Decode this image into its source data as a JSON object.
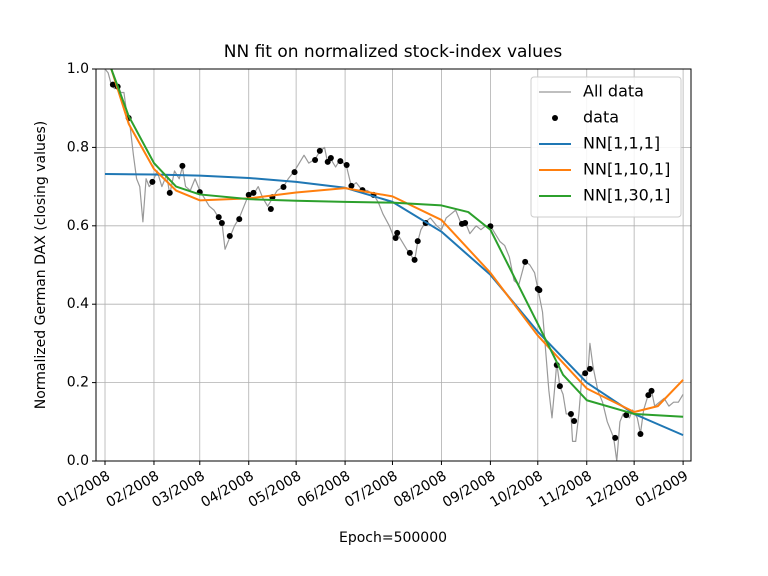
{
  "chart_data": {
    "type": "line",
    "title": "NN fit on normalized stock-index values",
    "x_label": "Epoch=500000",
    "y_label": "Normalized German DAX (closing values)",
    "xlim": [
      -5.7,
      371
    ],
    "ylim": [
      0,
      1
    ],
    "xticks": [
      {
        "value": 0,
        "label": "01/2008"
      },
      {
        "value": 31,
        "label": "02/2008"
      },
      {
        "value": 60,
        "label": "03/2008"
      },
      {
        "value": 91,
        "label": "04/2008"
      },
      {
        "value": 121,
        "label": "05/2008"
      },
      {
        "value": 152,
        "label": "06/2008"
      },
      {
        "value": 182,
        "label": "07/2008"
      },
      {
        "value": 213,
        "label": "08/2008"
      },
      {
        "value": 244,
        "label": "09/2008"
      },
      {
        "value": 274,
        "label": "10/2008"
      },
      {
        "value": 305,
        "label": "11/2008"
      },
      {
        "value": 335,
        "label": "12/2008"
      },
      {
        "value": 366,
        "label": "01/2009"
      }
    ],
    "yticks": [
      {
        "value": 0,
        "label": "0.0"
      },
      0.2,
      0.4,
      0.6,
      0.8,
      {
        "value": 1,
        "label": "1.0"
      }
    ],
    "grid": true,
    "legend": "upper right",
    "series": [
      {
        "name": "All data",
        "kind": "line",
        "color": "#999999",
        "width": 1.2,
        "x": [
          0,
          2,
          4,
          6,
          8,
          10,
          12,
          14,
          16,
          18,
          20,
          22,
          24,
          26,
          28,
          30,
          33,
          36,
          39,
          41,
          44,
          47,
          49,
          51,
          54,
          57,
          60,
          63,
          66,
          69,
          72,
          74,
          76,
          79,
          82,
          85,
          88,
          91,
          94,
          97,
          100,
          103,
          106,
          109,
          113,
          116,
          120,
          123,
          126,
          129,
          133,
          136,
          139,
          141,
          143,
          146,
          149,
          151,
          153,
          156,
          159,
          163,
          166,
          170,
          173,
          176,
          180,
          183,
          185,
          188,
          191,
          193,
          196,
          198,
          200,
          203,
          206,
          210,
          213,
          216,
          219,
          222,
          226,
          228,
          231,
          235,
          238,
          241,
          244,
          247,
          250,
          253,
          256,
          259,
          262,
          266,
          269,
          272,
          274,
          277,
          279,
          281,
          283,
          285,
          286,
          288,
          290,
          292,
          295,
          296,
          298,
          300,
          302,
          304,
          306,
          307,
          309,
          312,
          315,
          318,
          320,
          322,
          324,
          326,
          328,
          330,
          332,
          334,
          337,
          339,
          341,
          344,
          346,
          348,
          351,
          354,
          357,
          360,
          363,
          366
        ],
        "values": [
          1.0,
          0.99,
          0.96,
          0.95,
          0.96,
          0.94,
          0.94,
          0.88,
          0.85,
          0.78,
          0.72,
          0.7,
          0.61,
          0.72,
          0.7,
          0.71,
          0.74,
          0.7,
          0.73,
          0.68,
          0.74,
          0.72,
          0.75,
          0.7,
          0.69,
          0.72,
          0.69,
          0.67,
          0.65,
          0.64,
          0.62,
          0.61,
          0.54,
          0.57,
          0.6,
          0.62,
          0.65,
          0.68,
          0.68,
          0.7,
          0.67,
          0.65,
          0.67,
          0.69,
          0.7,
          0.72,
          0.74,
          0.76,
          0.78,
          0.76,
          0.77,
          0.79,
          0.8,
          0.76,
          0.77,
          0.75,
          0.77,
          0.76,
          0.75,
          0.7,
          0.71,
          0.69,
          0.69,
          0.68,
          0.66,
          0.63,
          0.6,
          0.57,
          0.58,
          0.56,
          0.54,
          0.53,
          0.51,
          0.56,
          0.59,
          0.61,
          0.62,
          0.6,
          0.59,
          0.62,
          0.63,
          0.64,
          0.6,
          0.61,
          0.58,
          0.6,
          0.59,
          0.6,
          0.6,
          0.58,
          0.56,
          0.55,
          0.52,
          0.46,
          0.45,
          0.51,
          0.5,
          0.48,
          0.44,
          0.38,
          0.28,
          0.18,
          0.11,
          0.2,
          0.25,
          0.19,
          0.17,
          0.12,
          0.12,
          0.05,
          0.05,
          0.12,
          0.22,
          0.22,
          0.24,
          0.3,
          0.24,
          0.18,
          0.15,
          0.1,
          0.08,
          0.06,
          0.0,
          0.1,
          0.12,
          0.12,
          0.11,
          0.13,
          0.11,
          0.07,
          0.13,
          0.17,
          0.18,
          0.14,
          0.15,
          0.16,
          0.14,
          0.15,
          0.15,
          0.17
        ]
      },
      {
        "name": "data",
        "kind": "scatter",
        "color": "#000000",
        "x": [
          5,
          8,
          15,
          30,
          41,
          49,
          60,
          72,
          74,
          79,
          85,
          91,
          94,
          105,
          106,
          113,
          120,
          133,
          136,
          141,
          143,
          149,
          153,
          156,
          163,
          170,
          184,
          185,
          193,
          196,
          198,
          203,
          226,
          228,
          244,
          266,
          274,
          275,
          286,
          288,
          295,
          297,
          304,
          307,
          323,
          330,
          339,
          344,
          346
        ],
        "values": [
          0.96,
          0.955,
          0.875,
          0.712,
          0.684,
          0.753,
          0.686,
          0.622,
          0.607,
          0.574,
          0.617,
          0.679,
          0.684,
          0.643,
          0.673,
          0.699,
          0.737,
          0.768,
          0.791,
          0.763,
          0.773,
          0.765,
          0.755,
          0.702,
          0.691,
          0.679,
          0.569,
          0.582,
          0.531,
          0.513,
          0.561,
          0.607,
          0.605,
          0.607,
          0.599,
          0.508,
          0.439,
          0.436,
          0.245,
          0.191,
          0.12,
          0.102,
          0.224,
          0.235,
          0.059,
          0.117,
          0.069,
          0.168,
          0.179
        ]
      },
      {
        "name": "NN[1,1,1]",
        "kind": "line",
        "color": "#1f77b4",
        "width": 2,
        "x": [
          0,
          31,
          60,
          91,
          121,
          152,
          182,
          213,
          244,
          274,
          305,
          335,
          366
        ],
        "values": [
          0.732,
          0.731,
          0.728,
          0.722,
          0.712,
          0.697,
          0.661,
          0.585,
          0.475,
          0.33,
          0.2,
          0.12,
          0.066
        ]
      },
      {
        "name": "NN[1,10,1]",
        "kind": "line",
        "color": "#ff7f0e",
        "width": 2,
        "x": [
          4,
          15,
          31,
          45,
          60,
          91,
          121,
          152,
          182,
          213,
          244,
          274,
          305,
          335,
          350,
          366
        ],
        "values": [
          1.0,
          0.86,
          0.745,
          0.69,
          0.665,
          0.67,
          0.685,
          0.696,
          0.675,
          0.615,
          0.48,
          0.32,
          0.185,
          0.125,
          0.14,
          0.207
        ]
      },
      {
        "name": "NN[1,30,1]",
        "kind": "line",
        "color": "#2ca02c",
        "width": 2,
        "x": [
          4,
          15,
          31,
          45,
          60,
          91,
          121,
          152,
          182,
          213,
          230,
          244,
          274,
          290,
          305,
          335,
          366
        ],
        "values": [
          1.0,
          0.88,
          0.76,
          0.7,
          0.68,
          0.668,
          0.664,
          0.661,
          0.659,
          0.652,
          0.635,
          0.59,
          0.35,
          0.22,
          0.155,
          0.12,
          0.113
        ]
      }
    ]
  }
}
